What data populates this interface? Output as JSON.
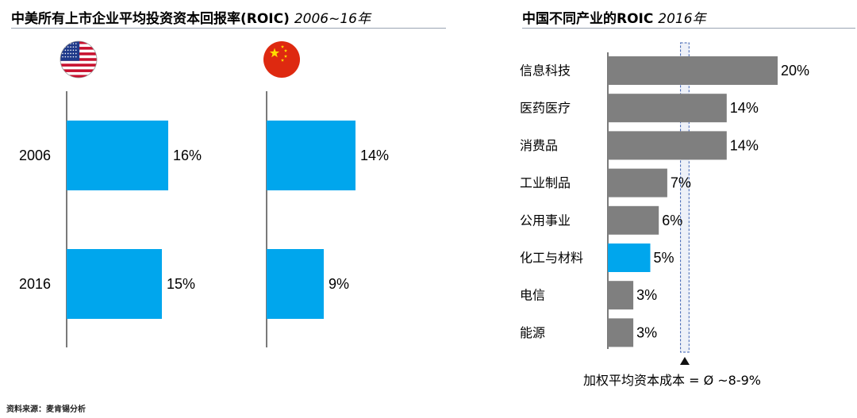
{
  "left_panel": {
    "title_main": "中美所有上市企业平均投资资本回报率(ROIC) ",
    "title_years": "2006~16年"
  },
  "right_panel": {
    "title_main": "中国不同产业的ROIC ",
    "title_year": "2016年",
    "wacc_label": "加权平均资本成本 = Ø ~8-9%"
  },
  "source": "资料来源：麦肯锡分析",
  "colors": {
    "blue": "#00a6ed",
    "gray": "#7f7f7f",
    "axis": "#222222",
    "band": "#eef1f8",
    "band_border": "#3a5fb0"
  },
  "chart_data": [
    {
      "type": "bar",
      "orientation": "horizontal",
      "flag_icon": "us-flag-icon",
      "categories": [
        "2006",
        "2016"
      ],
      "series": [
        {
          "values": [
            16,
            15
          ]
        }
      ],
      "value_labels": [
        "16%",
        "15%"
      ],
      "unit": "%",
      "xlim": [
        0,
        20
      ]
    },
    {
      "type": "bar",
      "orientation": "horizontal",
      "flag_icon": "china-flag-icon",
      "categories": [
        "2006",
        "2016"
      ],
      "series": [
        {
          "values": [
            14,
            9
          ]
        }
      ],
      "value_labels": [
        "14%",
        "9%"
      ],
      "unit": "%",
      "xlim": [
        0,
        20
      ]
    },
    {
      "type": "bar",
      "orientation": "horizontal",
      "categories": [
        "信息科技",
        "医药医疗",
        "消费品",
        "工业制品",
        "公用事业",
        "化工与材料",
        "电信",
        "能源"
      ],
      "series": [
        {
          "values": [
            20,
            14,
            14,
            7,
            6,
            5,
            3,
            3
          ]
        }
      ],
      "value_labels": [
        "20%",
        "14%",
        "14%",
        "7%",
        "6%",
        "5%",
        "3%",
        "3%"
      ],
      "highlight_category": "化工与材料",
      "reference_band": [
        8,
        9
      ],
      "unit": "%",
      "xlim": [
        0,
        20
      ]
    }
  ]
}
